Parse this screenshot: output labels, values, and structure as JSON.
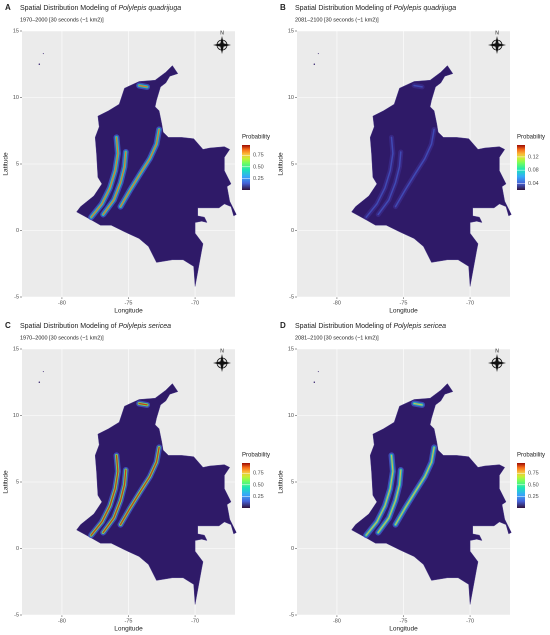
{
  "north": "N",
  "panels": [
    {
      "label": "A",
      "title": "Spatial Distribution Modeling of ",
      "species": "Polylepis quadrijuga",
      "subtitle": "1970–2000 [30 seconds (~1 km2)]",
      "xlabel": "Longitude",
      "ylabel": "Latitude",
      "xlim": [
        -83,
        -67
      ],
      "ylim": [
        -5,
        15
      ],
      "xticks": [
        -80,
        -75,
        -70
      ],
      "yticks": [
        -5,
        0,
        5,
        10,
        15
      ],
      "legend": {
        "title": "Probability",
        "lim": [
          0,
          0.97
        ],
        "ticks": [
          0.25,
          {
            "value": 0.5,
            "label": "0.50"
          },
          0.75
        ]
      }
    },
    {
      "label": "B",
      "title": "Spatial Distribution Modeling of ",
      "species": "Polylepis quadrijuga",
      "subtitle": "2081–2100 [30 seconds (~1 km2)]",
      "xlabel": "Longitude",
      "ylabel": "Latitude",
      "xlim": [
        -83,
        -67
      ],
      "ylim": [
        -5,
        15
      ],
      "xticks": [
        -80,
        -75,
        -70
      ],
      "yticks": [
        -5,
        0,
        5,
        10,
        15
      ],
      "legend": {
        "title": "Probability",
        "lim": [
          0.02,
          0.156
        ],
        "ticks": [
          0.04,
          0.08,
          0.12
        ]
      }
    },
    {
      "label": "C",
      "title": "Spatial Distribution Modeling of ",
      "species": "Polylepis sericea",
      "subtitle": "1970–2000 [30 seconds (~1 km2)]",
      "xlabel": "Longitude",
      "ylabel": "Latitude",
      "xlim": [
        -83,
        -67
      ],
      "ylim": [
        -5,
        15
      ],
      "xticks": [
        -80,
        -75,
        -70
      ],
      "yticks": [
        -5,
        0,
        5,
        10,
        15
      ],
      "legend": {
        "title": "Probability",
        "lim": [
          0,
          0.97
        ],
        "ticks": [
          0.25,
          {
            "value": 0.5,
            "label": "0.50"
          },
          0.75
        ]
      }
    },
    {
      "label": "D",
      "title": "Spatial Distribution Modeling of ",
      "species": "Polylepis sericea",
      "subtitle": "2081–2100 [30 seconds (~1 km2)]",
      "xlabel": "Longitude",
      "ylabel": "Latitude",
      "xlim": [
        -83,
        -67
      ],
      "ylim": [
        -5,
        15
      ],
      "xticks": [
        -80,
        -75,
        -70
      ],
      "yticks": [
        -5,
        0,
        5,
        10,
        15
      ],
      "legend": {
        "title": "Probability",
        "lim": [
          0,
          0.97
        ],
        "ticks": [
          0.25,
          {
            "value": 0.5,
            "label": "0.50"
          },
          0.75
        ]
      }
    }
  ]
}
